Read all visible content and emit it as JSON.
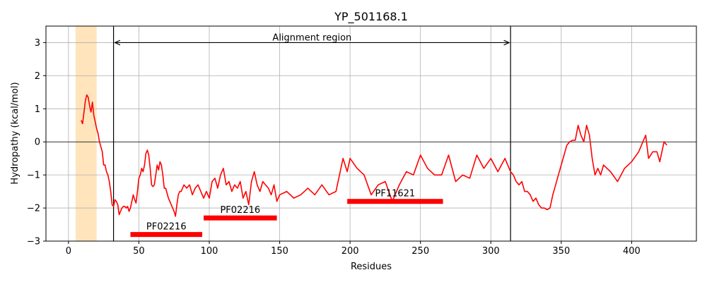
{
  "chart_data": {
    "type": "line",
    "title": "YP_501168.1",
    "xlabel": "Residues",
    "ylabel": "Hydropathy (kcal/mol)",
    "xlim": [
      -16,
      446
    ],
    "ylim": [
      -3,
      3.5
    ],
    "xticks": [
      0,
      50,
      100,
      150,
      200,
      250,
      300,
      350,
      400
    ],
    "yticks": [
      -3,
      -2,
      -1,
      0,
      1,
      2,
      3
    ],
    "grid": true,
    "line_color": "#ff0000",
    "series": [
      {
        "x": [
          9,
          10,
          11,
          12,
          13,
          14,
          15,
          16,
          17,
          18,
          19,
          20,
          21,
          22,
          23,
          24,
          25,
          26,
          27,
          28,
          29,
          30,
          31,
          32,
          33,
          34,
          35,
          36,
          37,
          38,
          39,
          40,
          41,
          42,
          43,
          44,
          45,
          46,
          47,
          48,
          49,
          50,
          51,
          52,
          53,
          54,
          55,
          56,
          57,
          58,
          59,
          60,
          61,
          62,
          63,
          64,
          65,
          66,
          67,
          68,
          69,
          70,
          71,
          72,
          73,
          74,
          75,
          76,
          77,
          78,
          79,
          80,
          82,
          84,
          86,
          88,
          90,
          92,
          94,
          96,
          98,
          100,
          102,
          104,
          106,
          108,
          110,
          112,
          114,
          116,
          118,
          120,
          122,
          124,
          126,
          128,
          130,
          132,
          134,
          136,
          138,
          140,
          142,
          144,
          146,
          148,
          150,
          155,
          160,
          165,
          170,
          175,
          180,
          185,
          190,
          195,
          198,
          200,
          205,
          210,
          215,
          220,
          225,
          230,
          235,
          240,
          245,
          250,
          255,
          260,
          265,
          270,
          275,
          280,
          285,
          290,
          295,
          300,
          305,
          310,
          314,
          316,
          318,
          320,
          322,
          324,
          326,
          328,
          330,
          332,
          334,
          336,
          338,
          340,
          342,
          344,
          346,
          348,
          350,
          352,
          354,
          356,
          358,
          360,
          362,
          364,
          366,
          368,
          370,
          372,
          374,
          376,
          378,
          380,
          385,
          390,
          395,
          400,
          405,
          408,
          410,
          412,
          415,
          418,
          420,
          423,
          425
        ],
        "y": [
          0.65,
          0.55,
          0.9,
          1.25,
          1.42,
          1.35,
          1.1,
          0.9,
          1.2,
          0.8,
          0.6,
          0.4,
          0.25,
          0.0,
          -0.15,
          -0.3,
          -0.7,
          -0.7,
          -0.9,
          -1.0,
          -1.2,
          -1.5,
          -1.9,
          -1.95,
          -1.75,
          -1.8,
          -1.9,
          -2.2,
          -2.1,
          -2.0,
          -1.95,
          -1.95,
          -2.0,
          -1.95,
          -2.1,
          -2.0,
          -1.8,
          -1.6,
          -1.75,
          -1.85,
          -1.5,
          -1.1,
          -1.0,
          -0.8,
          -0.9,
          -0.7,
          -0.35,
          -0.25,
          -0.4,
          -0.8,
          -1.3,
          -1.35,
          -1.3,
          -1.0,
          -0.7,
          -0.85,
          -0.6,
          -0.7,
          -1.0,
          -1.4,
          -1.4,
          -1.55,
          -1.7,
          -1.8,
          -1.9,
          -2.0,
          -2.1,
          -2.25,
          -1.9,
          -1.6,
          -1.5,
          -1.5,
          -1.3,
          -1.4,
          -1.3,
          -1.6,
          -1.4,
          -1.3,
          -1.5,
          -1.7,
          -1.5,
          -1.7,
          -1.2,
          -1.1,
          -1.4,
          -1.0,
          -0.8,
          -1.3,
          -1.2,
          -1.5,
          -1.3,
          -1.4,
          -1.2,
          -1.7,
          -1.5,
          -1.9,
          -1.2,
          -0.9,
          -1.3,
          -1.5,
          -1.2,
          -1.3,
          -1.4,
          -1.6,
          -1.3,
          -1.8,
          -1.6,
          -1.5,
          -1.7,
          -1.6,
          -1.4,
          -1.6,
          -1.3,
          -1.6,
          -1.5,
          -0.5,
          -0.9,
          -0.5,
          -0.8,
          -1.0,
          -1.6,
          -1.3,
          -1.2,
          -1.8,
          -1.3,
          -0.9,
          -1.0,
          -0.4,
          -0.8,
          -1.0,
          -1.0,
          -0.4,
          -1.2,
          -1.0,
          -1.1,
          -0.4,
          -0.8,
          -0.5,
          -0.9,
          -0.5,
          -0.9,
          -1.0,
          -1.2,
          -1.3,
          -1.2,
          -1.5,
          -1.5,
          -1.6,
          -1.8,
          -1.7,
          -1.9,
          -2.0,
          -2.0,
          -2.05,
          -2.0,
          -1.6,
          -1.3,
          -1.0,
          -0.7,
          -0.4,
          -0.1,
          0.0,
          0.05,
          0.05,
          0.5,
          0.2,
          0.0,
          0.5,
          0.2,
          -0.5,
          -1.0,
          -0.8,
          -1.0,
          -0.7,
          -0.9,
          -1.2,
          -0.8,
          -0.6,
          -0.3,
          0.0,
          0.2,
          -0.5,
          -0.3,
          -0.3,
          -0.6,
          0.0,
          -0.1
        ]
      }
    ],
    "shaded_span": {
      "x": [
        5,
        20
      ],
      "color": "#ffe4bc"
    },
    "vlines": [
      32,
      314
    ],
    "hline": 0,
    "alignment_arrow": {
      "x": [
        32,
        314
      ],
      "y": 3.0,
      "label": "Alignment region"
    },
    "domains": [
      {
        "label": "PF02216",
        "x": [
          44,
          95
        ],
        "y": -2.8
      },
      {
        "label": "PF02216",
        "x": [
          96,
          148
        ],
        "y": -2.3
      },
      {
        "label": "PF11621",
        "x": [
          198,
          266
        ],
        "y": -1.8
      }
    ],
    "domain_color": "#ff0000"
  }
}
